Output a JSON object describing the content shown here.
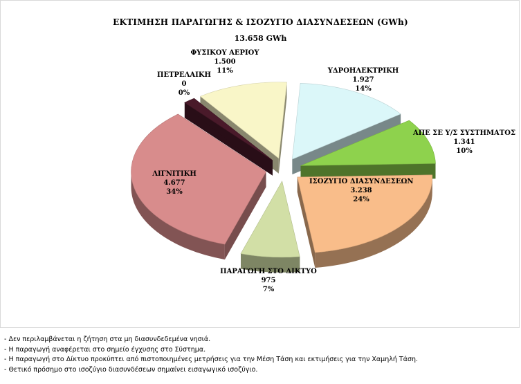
{
  "chart_data": {
    "type": "pie",
    "title": "ΕΚΤΙΜΗΣΗ ΠΑΡΑΓΩΓΗΣ & ΙΣΟΖΥΓΙΟ ΔΙΑΣΥΝΔΕΣΕΩΝ (GWh)",
    "total_label": "13.658   GWh",
    "slices": [
      {
        "name": "ΥΔΡΟΗΛΕΚΤΡΙΚΗ",
        "value": 1927,
        "value_label": "1.927",
        "percent_label": "14%",
        "color": "#dbf7f9"
      },
      {
        "name": "ΑΠΕ ΣΕ Υ/Σ ΣΥΣΤΗΜΑΤΟΣ",
        "value": 1341,
        "value_label": "1.341",
        "percent_label": "10%",
        "color": "#8ed24d"
      },
      {
        "name": "ΙΣΟΖΥΓΙΟ ΔΙΑΣΥΝΔΕΣΕΩΝ",
        "value": 3238,
        "value_label": "3.238",
        "percent_label": "24%",
        "color": "#f9bd8a"
      },
      {
        "name": "ΠΑΡΑΓΩΓΗ ΣΤΟ ΔΙΚΤΥΟ",
        "value": 975,
        "value_label": "975",
        "percent_label": "7%",
        "color": "#d2dfa6"
      },
      {
        "name": "ΛΙΓΝΙΤΙΚΗ",
        "value": 4677,
        "value_label": "4.677",
        "percent_label": "34%",
        "color": "#d88c8c"
      },
      {
        "name": "ΠΕΤΡΕΛΑΙΚΗ",
        "value": 0,
        "value_label": "0",
        "percent_label": "0%",
        "color": "#4a1a2a"
      },
      {
        "name": "ΦΥΣΙΚΟΥ ΑΕΡΙΟΥ",
        "value": 1500,
        "value_label": "1.500",
        "percent_label": "11%",
        "color": "#f9f6c8"
      }
    ]
  },
  "notes": [
    "- Δεν περιλαμβάνεται η ζήτηση στα μη διασυνδεδεμένα νησιά.",
    "- Η παραγωγή αναφέρεται στο σημείο έγχυσης στο Σύστημα.",
    "- Η παραγωγή στο Δίκτυο προκύπτει από πιστοποιημένες μετρήσεις για την Μέση Τάση και εκτιμήσεις για την Χαμηλή Τάση.",
    "- Θετικό πρόσημο στο ισοζύγιο διασυνδέσεων σημαίνει εισαγωγικό ισοζύγιο."
  ]
}
